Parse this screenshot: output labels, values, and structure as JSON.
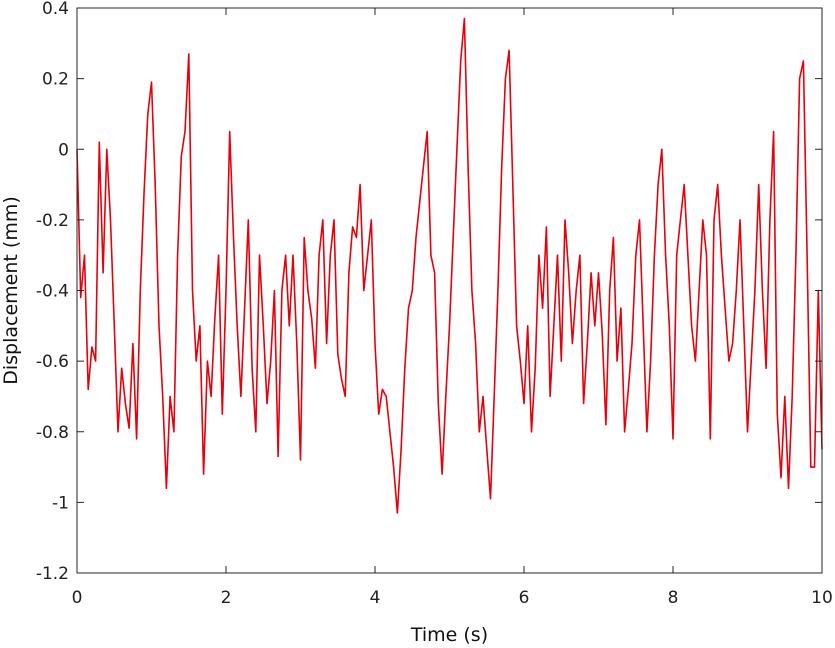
{
  "chart_data": {
    "type": "line",
    "title": "",
    "xlabel": "Time (s)",
    "ylabel": "Displacement (mm)",
    "xlim": [
      0,
      10
    ],
    "ylim": [
      -1.2,
      0.4
    ],
    "xticks": [
      0,
      2,
      4,
      6,
      8,
      10
    ],
    "yticks": [
      -1.2,
      -1,
      -0.8,
      -0.6,
      -0.4,
      -0.2,
      0,
      0.2,
      0.4
    ],
    "xtick_labels": [
      "0",
      "2",
      "4",
      "6",
      "8",
      "10"
    ],
    "ytick_labels": [
      "-1.2",
      "-1",
      "-0.8",
      "-0.6",
      "-0.4",
      "-0.2",
      "0",
      "0.2",
      "0.4"
    ],
    "grid": false,
    "legend": "none",
    "series": [
      {
        "color": "#e8000b",
        "x": [
          0,
          0.05,
          0.1,
          0.15,
          0.2,
          0.25,
          0.3,
          0.35,
          0.4,
          0.45,
          0.5,
          0.55,
          0.6,
          0.65,
          0.7,
          0.75,
          0.8,
          0.85,
          0.9,
          0.95,
          1.0,
          1.05,
          1.1,
          1.15,
          1.2,
          1.25,
          1.3,
          1.35,
          1.4,
          1.45,
          1.5,
          1.55,
          1.6,
          1.65,
          1.7,
          1.75,
          1.8,
          1.85,
          1.9,
          1.95,
          2.0,
          2.05,
          2.1,
          2.15,
          2.2,
          2.25,
          2.3,
          2.35,
          2.4,
          2.45,
          2.5,
          2.55,
          2.6,
          2.65,
          2.7,
          2.75,
          2.8,
          2.85,
          2.9,
          2.95,
          3.0,
          3.05,
          3.1,
          3.15,
          3.2,
          3.25,
          3.3,
          3.35,
          3.4,
          3.45,
          3.5,
          3.55,
          3.6,
          3.65,
          3.7,
          3.75,
          3.8,
          3.85,
          3.9,
          3.95,
          4.0,
          4.05,
          4.1,
          4.15,
          4.2,
          4.25,
          4.3,
          4.35,
          4.4,
          4.45,
          4.5,
          4.55,
          4.6,
          4.65,
          4.7,
          4.75,
          4.8,
          4.85,
          4.9,
          4.95,
          5.0,
          5.05,
          5.1,
          5.15,
          5.2,
          5.25,
          5.3,
          5.35,
          5.4,
          5.45,
          5.5,
          5.55,
          5.6,
          5.65,
          5.7,
          5.75,
          5.8,
          5.85,
          5.9,
          5.95,
          6.0,
          6.05,
          6.1,
          6.15,
          6.2,
          6.25,
          6.3,
          6.35,
          6.4,
          6.45,
          6.5,
          6.55,
          6.6,
          6.65,
          6.7,
          6.75,
          6.8,
          6.85,
          6.9,
          6.95,
          7.0,
          7.05,
          7.1,
          7.15,
          7.2,
          7.25,
          7.3,
          7.35,
          7.4,
          7.45,
          7.5,
          7.55,
          7.6,
          7.65,
          7.7,
          7.75,
          7.8,
          7.85,
          7.9,
          7.95,
          8.0,
          8.05,
          8.1,
          8.15,
          8.2,
          8.25,
          8.3,
          8.35,
          8.4,
          8.45,
          8.5,
          8.55,
          8.6,
          8.65,
          8.7,
          8.75,
          8.8,
          8.85,
          8.9,
          8.95,
          9.0,
          9.05,
          9.1,
          9.15,
          9.2,
          9.25,
          9.3,
          9.35,
          9.4,
          9.45,
          9.5,
          9.55,
          9.6,
          9.65,
          9.7,
          9.75,
          9.8,
          9.85,
          9.9,
          9.95,
          10.0
        ],
        "y": [
          0.0,
          -0.42,
          -0.3,
          -0.68,
          -0.56,
          -0.6,
          0.02,
          -0.35,
          0.0,
          -0.2,
          -0.5,
          -0.8,
          -0.62,
          -0.72,
          -0.79,
          -0.55,
          -0.82,
          -0.4,
          -0.12,
          0.1,
          0.19,
          -0.1,
          -0.5,
          -0.7,
          -0.96,
          -0.7,
          -0.8,
          -0.3,
          -0.02,
          0.05,
          0.27,
          -0.4,
          -0.6,
          -0.5,
          -0.92,
          -0.6,
          -0.7,
          -0.48,
          -0.3,
          -0.75,
          -0.4,
          0.05,
          -0.25,
          -0.5,
          -0.7,
          -0.45,
          -0.2,
          -0.62,
          -0.8,
          -0.3,
          -0.5,
          -0.72,
          -0.6,
          -0.4,
          -0.87,
          -0.4,
          -0.3,
          -0.5,
          -0.3,
          -0.55,
          -0.88,
          -0.25,
          -0.4,
          -0.48,
          -0.62,
          -0.3,
          -0.2,
          -0.55,
          -0.3,
          -0.2,
          -0.58,
          -0.65,
          -0.7,
          -0.35,
          -0.22,
          -0.25,
          -0.1,
          -0.4,
          -0.3,
          -0.2,
          -0.55,
          -0.75,
          -0.68,
          -0.7,
          -0.8,
          -0.9,
          -1.03,
          -0.85,
          -0.62,
          -0.45,
          -0.4,
          -0.25,
          -0.15,
          -0.05,
          0.05,
          -0.3,
          -0.35,
          -0.72,
          -0.92,
          -0.7,
          -0.5,
          -0.25,
          0.0,
          0.25,
          0.37,
          -0.05,
          -0.4,
          -0.55,
          -0.8,
          -0.7,
          -0.85,
          -0.99,
          -0.7,
          -0.4,
          -0.05,
          0.2,
          0.28,
          -0.1,
          -0.5,
          -0.6,
          -0.72,
          -0.5,
          -0.8,
          -0.62,
          -0.3,
          -0.45,
          -0.22,
          -0.7,
          -0.5,
          -0.3,
          -0.6,
          -0.2,
          -0.35,
          -0.55,
          -0.4,
          -0.3,
          -0.72,
          -0.55,
          -0.35,
          -0.5,
          -0.35,
          -0.52,
          -0.78,
          -0.4,
          -0.25,
          -0.6,
          -0.45,
          -0.8,
          -0.68,
          -0.55,
          -0.3,
          -0.2,
          -0.5,
          -0.8,
          -0.6,
          -0.3,
          -0.1,
          0.0,
          -0.3,
          -0.5,
          -0.82,
          -0.3,
          -0.2,
          -0.1,
          -0.3,
          -0.5,
          -0.6,
          -0.4,
          -0.2,
          -0.3,
          -0.82,
          -0.2,
          -0.1,
          -0.3,
          -0.45,
          -0.6,
          -0.55,
          -0.4,
          -0.2,
          -0.5,
          -0.8,
          -0.6,
          -0.4,
          -0.1,
          -0.4,
          -0.62,
          -0.2,
          0.05,
          -0.75,
          -0.93,
          -0.7,
          -0.96,
          -0.7,
          -0.3,
          0.2,
          0.25,
          -0.3,
          -0.9,
          -0.9,
          -0.4,
          -0.85
        ]
      }
    ]
  }
}
